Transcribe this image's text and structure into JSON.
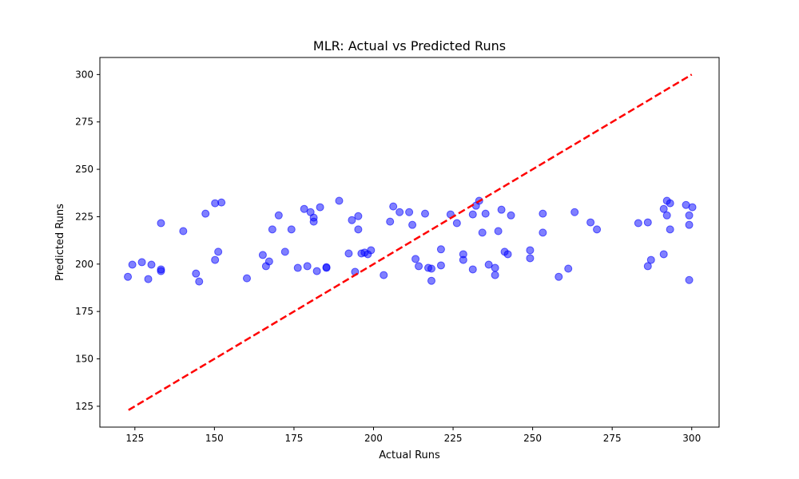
{
  "chart_data": {
    "type": "scatter",
    "title": "MLR: Actual vs Predicted Runs",
    "xlabel": "Actual Runs",
    "ylabel": "Predicted Runs",
    "xlim": [
      114,
      308.6
    ],
    "ylim": [
      114,
      309
    ],
    "xticks": [
      125,
      150,
      175,
      200,
      225,
      250,
      275,
      300
    ],
    "yticks": [
      125,
      150,
      175,
      200,
      225,
      250,
      275,
      300
    ],
    "grid": false,
    "legend": "none",
    "colors": {
      "points": "#0000ff",
      "reference_line": "#ff0000"
    },
    "reference_line": {
      "style": "dashed",
      "from": [
        123,
        123
      ],
      "to": [
        300,
        300
      ]
    },
    "series": [
      {
        "values": [
          [
            122.8,
            193.3
          ],
          [
            124.2,
            199.7
          ],
          [
            127.2,
            201.0
          ],
          [
            129.2,
            192.1
          ],
          [
            130.2,
            199.7
          ],
          [
            133.2,
            221.6
          ],
          [
            133.2,
            197.2
          ],
          [
            133.2,
            196.3
          ],
          [
            140.2,
            217.4
          ],
          [
            144.2,
            195.0
          ],
          [
            145.2,
            190.8
          ],
          [
            147.2,
            226.6
          ],
          [
            150.2,
            232.1
          ],
          [
            150.2,
            202.2
          ],
          [
            151.2,
            206.5
          ],
          [
            152.2,
            232.5
          ],
          [
            160.2,
            192.5
          ],
          [
            165.2,
            204.8
          ],
          [
            166.2,
            198.9
          ],
          [
            167.2,
            201.4
          ],
          [
            168.2,
            218.3
          ],
          [
            170.2,
            225.7
          ],
          [
            172.2,
            206.5
          ],
          [
            174.2,
            218.3
          ],
          [
            176.2,
            198.0
          ],
          [
            178.2,
            229.1
          ],
          [
            179.2,
            198.9
          ],
          [
            180.2,
            227.4
          ],
          [
            181.2,
            224.5
          ],
          [
            181.2,
            222.4
          ],
          [
            182.2,
            196.3
          ],
          [
            183.2,
            230.0
          ],
          [
            185.2,
            198.4
          ],
          [
            185.2,
            198.0
          ],
          [
            189.2,
            233.4
          ],
          [
            192.2,
            205.6
          ],
          [
            193.2,
            223.2
          ],
          [
            194.2,
            195.9
          ],
          [
            195.2,
            225.3
          ],
          [
            195.2,
            218.3
          ],
          [
            196.2,
            205.6
          ],
          [
            197.2,
            206.1
          ],
          [
            198.2,
            205.2
          ],
          [
            199.2,
            207.3
          ],
          [
            203.2,
            194.2
          ],
          [
            205.2,
            222.4
          ],
          [
            206.2,
            230.4
          ],
          [
            208.2,
            227.4
          ],
          [
            211.2,
            227.4
          ],
          [
            212.2,
            220.7
          ],
          [
            213.2,
            202.7
          ],
          [
            214.2,
            198.9
          ],
          [
            216.2,
            226.6
          ],
          [
            217.2,
            198.0
          ],
          [
            218.2,
            191.2
          ],
          [
            218.2,
            197.6
          ],
          [
            221.2,
            207.8
          ],
          [
            221.2,
            199.3
          ],
          [
            224.2,
            226.2
          ],
          [
            226.2,
            221.6
          ],
          [
            228.2,
            205.2
          ],
          [
            228.2,
            202.2
          ],
          [
            231.2,
            226.2
          ],
          [
            231.2,
            197.2
          ],
          [
            232.2,
            230.8
          ],
          [
            233.2,
            233.4
          ],
          [
            234.2,
            216.6
          ],
          [
            235.2,
            226.6
          ],
          [
            236.2,
            199.7
          ],
          [
            238.2,
            198.0
          ],
          [
            238.2,
            194.2
          ],
          [
            239.2,
            217.4
          ],
          [
            240.2,
            228.7
          ],
          [
            241.2,
            206.5
          ],
          [
            242.2,
            205.2
          ],
          [
            243.2,
            225.7
          ],
          [
            249.2,
            207.3
          ],
          [
            249.2,
            203.1
          ],
          [
            253.2,
            226.6
          ],
          [
            253.2,
            216.6
          ],
          [
            258.2,
            193.3
          ],
          [
            261.2,
            197.6
          ],
          [
            263.2,
            227.4
          ],
          [
            268.2,
            222.0
          ],
          [
            270.2,
            218.3
          ],
          [
            283.2,
            221.6
          ],
          [
            286.2,
            222.0
          ],
          [
            286.2,
            198.9
          ],
          [
            287.2,
            202.2
          ],
          [
            291.2,
            229.1
          ],
          [
            291.2,
            205.2
          ],
          [
            292.2,
            233.4
          ],
          [
            292.2,
            225.7
          ],
          [
            293.2,
            232.1
          ],
          [
            293.2,
            218.3
          ],
          [
            298.2,
            231.2
          ],
          [
            299.2,
            225.7
          ],
          [
            299.2,
            220.7
          ],
          [
            299.2,
            191.6
          ],
          [
            300.2,
            230.0
          ]
        ]
      }
    ]
  }
}
